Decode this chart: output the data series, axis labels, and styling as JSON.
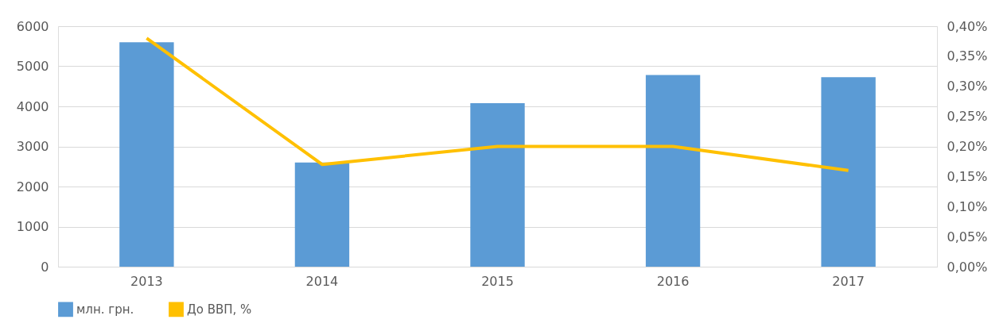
{
  "chart_data": {
    "type": "bar",
    "categories": [
      "2013",
      "2014",
      "2015",
      "2016",
      "2017"
    ],
    "series": [
      {
        "name": "млн. грн.",
        "color": "#5b9bd5",
        "values": [
          5600,
          2600,
          4080,
          4780,
          4730
        ]
      },
      {
        "name": "До ВВП, %",
        "type": "line",
        "axis": "y2",
        "color": "#ffc000",
        "values": [
          0.38,
          0.17,
          0.2,
          0.2,
          0.16
        ]
      }
    ],
    "ylim": [
      0,
      6000
    ],
    "yticks": [
      0,
      1000,
      2000,
      3000,
      4000,
      5000,
      6000
    ],
    "y2lim": [
      0,
      0.4
    ],
    "y2ticks": [
      {
        "value": 0,
        "label": "0,00%"
      },
      {
        "value": 0.05,
        "label": "0,05%"
      },
      {
        "value": 0.1,
        "label": "0,10%"
      },
      {
        "value": 0.15,
        "label": "0,15%"
      },
      {
        "value": 0.2,
        "label": "0,20%"
      },
      {
        "value": 0.25,
        "label": "0,25%"
      },
      {
        "value": 0.3,
        "label": "0,30%"
      },
      {
        "value": 0.35,
        "label": "0,35%"
      },
      {
        "value": 0.4,
        "label": "0,40%"
      }
    ],
    "grid": "y",
    "legend": "bottom",
    "marker": "none",
    "line_style": "solid"
  }
}
